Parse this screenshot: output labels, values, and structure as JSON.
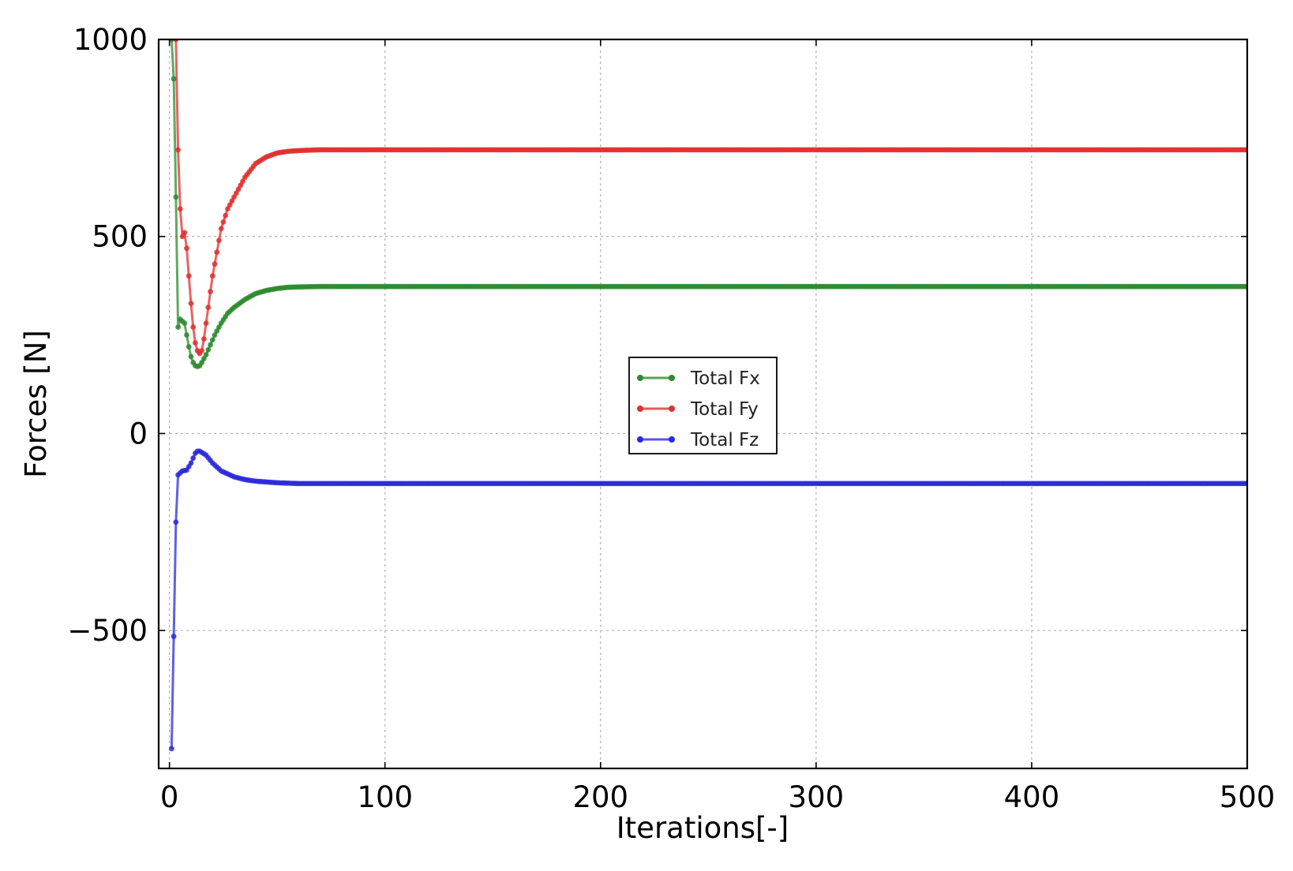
{
  "chart_data": {
    "type": "line",
    "xlabel": "Iterations[-]",
    "ylabel": "Forces [N]",
    "xlim": [
      -5,
      500
    ],
    "ylim": [
      -850,
      1000
    ],
    "xticks": [
      0,
      100,
      200,
      300,
      400,
      500
    ],
    "yticks": [
      -500,
      0,
      500,
      1000
    ],
    "xtick_labels": [
      "0",
      "100",
      "200",
      "300",
      "400",
      "500"
    ],
    "ytick_labels": [
      "−500",
      "0",
      "500",
      "1000"
    ],
    "grid": true,
    "legend_position": "center",
    "series": [
      {
        "name": "Total Fx",
        "color": "#2e8b2e",
        "marker": "dot",
        "points": [
          [
            1,
            1000
          ],
          [
            2,
            900
          ],
          [
            3,
            600
          ],
          [
            4,
            270
          ],
          [
            5,
            290
          ],
          [
            6,
            285
          ],
          [
            7,
            280
          ],
          [
            8,
            250
          ],
          [
            9,
            220
          ],
          [
            10,
            195
          ],
          [
            11,
            180
          ],
          [
            12,
            172
          ],
          [
            13,
            170
          ],
          [
            14,
            172
          ],
          [
            15,
            180
          ],
          [
            17,
            200
          ],
          [
            19,
            225
          ],
          [
            21,
            250
          ],
          [
            24,
            280
          ],
          [
            27,
            305
          ],
          [
            30,
            320
          ],
          [
            35,
            340
          ],
          [
            40,
            355
          ],
          [
            45,
            363
          ],
          [
            50,
            368
          ],
          [
            55,
            371
          ],
          [
            60,
            372
          ],
          [
            70,
            373
          ],
          [
            80,
            373
          ],
          [
            100,
            373
          ],
          [
            200,
            373
          ],
          [
            300,
            373
          ],
          [
            400,
            373
          ],
          [
            500,
            373
          ]
        ]
      },
      {
        "name": "Total Fy",
        "color": "#e03030",
        "marker": "dot",
        "points": [
          [
            3,
            1000
          ],
          [
            4,
            720
          ],
          [
            5,
            570
          ],
          [
            6,
            500
          ],
          [
            7,
            510
          ],
          [
            8,
            470
          ],
          [
            9,
            400
          ],
          [
            10,
            330
          ],
          [
            11,
            270
          ],
          [
            12,
            230
          ],
          [
            13,
            210
          ],
          [
            14,
            203
          ],
          [
            15,
            210
          ],
          [
            16,
            240
          ],
          [
            18,
            320
          ],
          [
            20,
            400
          ],
          [
            22,
            460
          ],
          [
            24,
            520
          ],
          [
            27,
            570
          ],
          [
            30,
            600
          ],
          [
            35,
            650
          ],
          [
            40,
            685
          ],
          [
            45,
            702
          ],
          [
            50,
            712
          ],
          [
            55,
            716
          ],
          [
            60,
            718
          ],
          [
            70,
            720
          ],
          [
            80,
            720
          ],
          [
            100,
            720
          ],
          [
            200,
            720
          ],
          [
            300,
            720
          ],
          [
            400,
            720
          ],
          [
            500,
            720
          ]
        ]
      },
      {
        "name": "Total Fz",
        "color": "#2b2bdc",
        "marker": "dot",
        "points": [
          [
            1,
            -800
          ],
          [
            2,
            -515
          ],
          [
            3,
            -225
          ],
          [
            4,
            -105
          ],
          [
            5,
            -100
          ],
          [
            6,
            -95
          ],
          [
            8,
            -93
          ],
          [
            10,
            -75
          ],
          [
            12,
            -50
          ],
          [
            13,
            -45
          ],
          [
            14,
            -45
          ],
          [
            15,
            -48
          ],
          [
            17,
            -55
          ],
          [
            20,
            -75
          ],
          [
            24,
            -95
          ],
          [
            30,
            -110
          ],
          [
            35,
            -117
          ],
          [
            40,
            -121
          ],
          [
            45,
            -123
          ],
          [
            50,
            -125
          ],
          [
            60,
            -127
          ],
          [
            80,
            -127
          ],
          [
            100,
            -127
          ],
          [
            200,
            -127
          ],
          [
            300,
            -127
          ],
          [
            400,
            -127
          ],
          [
            500,
            -127
          ]
        ]
      }
    ]
  }
}
